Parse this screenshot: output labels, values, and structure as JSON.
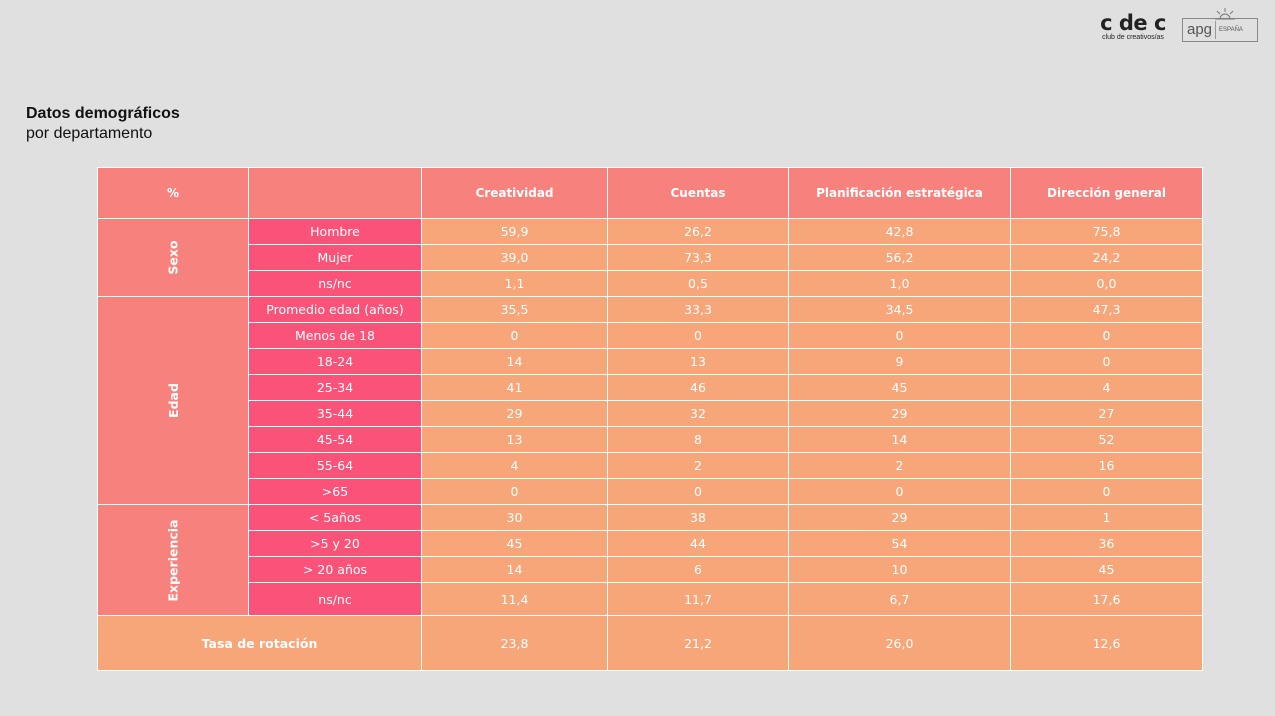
{
  "header": {
    "logo_cdec_main": "c de c",
    "logo_cdec_sub": "club de creativos/as",
    "logo_apg_main": "apg",
    "logo_apg_sub": "ESPAÑA"
  },
  "title": {
    "main": "Datos demográficos",
    "sub": "por departamento"
  },
  "table": {
    "corner": "%",
    "columns": [
      "Creatividad",
      "Cuentas",
      "Planificación estratégica",
      "Dirección general"
    ],
    "groups": [
      {
        "name": "Sexo",
        "rows": [
          {
            "label": "Hombre",
            "values": [
              "59,9",
              "26,2",
              "42,8",
              "75,8"
            ]
          },
          {
            "label": "Mujer",
            "values": [
              "39,0",
              "73,3",
              "56,2",
              "24,2"
            ]
          },
          {
            "label": "ns/nc",
            "values": [
              "1,1",
              "0,5",
              "1,0",
              "0,0"
            ]
          }
        ]
      },
      {
        "name": "Edad",
        "rows": [
          {
            "label": "Promedio edad (años)",
            "values": [
              "35,5",
              "33,3",
              "34,5",
              "47,3"
            ]
          },
          {
            "label": "Menos de 18",
            "values": [
              "0",
              "0",
              "0",
              "0"
            ]
          },
          {
            "label": "18-24",
            "values": [
              "14",
              "13",
              "9",
              "0"
            ]
          },
          {
            "label": "25-34",
            "values": [
              "41",
              "46",
              "45",
              "4"
            ]
          },
          {
            "label": "35-44",
            "values": [
              "29",
              "32",
              "29",
              "27"
            ]
          },
          {
            "label": "45-54",
            "values": [
              "13",
              "8",
              "14",
              "52"
            ]
          },
          {
            "label": "55-64",
            "values": [
              "4",
              "2",
              "2",
              "16"
            ]
          },
          {
            "label": ">65",
            "values": [
              "0",
              "0",
              "0",
              "0"
            ]
          }
        ]
      },
      {
        "name": "Experiencia",
        "rows": [
          {
            "label": "< 5años",
            "values": [
              "30",
              "38",
              "29",
              "1"
            ]
          },
          {
            "label": ">5 y 20",
            "values": [
              "45",
              "44",
              "54",
              "36"
            ]
          },
          {
            "label": "> 20 años",
            "values": [
              "14",
              "6",
              "10",
              "45"
            ]
          },
          {
            "label": "ns/nc",
            "values": [
              "11,4",
              "11,7",
              "6,7",
              "17,6"
            ]
          }
        ]
      }
    ],
    "rotation": {
      "label": "Tasa de rotación",
      "values": [
        "23,8",
        "21,2",
        "26,0",
        "12,6"
      ]
    }
  }
}
